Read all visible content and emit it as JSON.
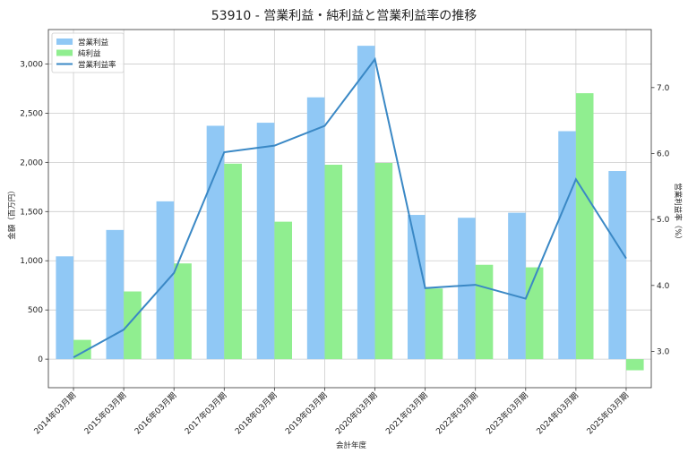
{
  "chart_data": {
    "type": "bar",
    "title": "53910 - 営業利益・純利益と営業利益率の推移",
    "xlabel": "会計年度",
    "ylabel": "金額（百万円）",
    "y2label": "営業利益率（%）",
    "categories": [
      "2014年03月期",
      "2015年03月期",
      "2016年03月期",
      "2017年03月期",
      "2018年03月期",
      "2019年03月期",
      "2020年03月期",
      "2021年03月期",
      "2022年03月期",
      "2023年03月期",
      "2024年03月期",
      "2025年03月期"
    ],
    "series": [
      {
        "name": "営業利益",
        "kind": "bar",
        "axis": "left",
        "color": "#90c8f5",
        "values": [
          1045,
          1313,
          1604,
          2372,
          2403,
          2661,
          3185,
          1466,
          1437,
          1488,
          2317,
          1912
        ]
      },
      {
        "name": "純利益",
        "kind": "bar",
        "axis": "left",
        "color": "#90ee90",
        "values": [
          196,
          688,
          973,
          1987,
          1397,
          1976,
          1994,
          718,
          959,
          933,
          2703,
          -113
        ]
      },
      {
        "name": "営業利益率",
        "kind": "line",
        "axis": "right",
        "color": "#3a88c5",
        "values": [
          2.91,
          3.33,
          4.19,
          6.02,
          6.12,
          6.42,
          7.43,
          3.96,
          4.01,
          3.8,
          5.61,
          4.41
        ]
      }
    ],
    "ylim": [
      -290,
      3350
    ],
    "yticks": [
      0,
      500,
      1000,
      1500,
      2000,
      2500,
      3000
    ],
    "ytick_labels": [
      "0",
      "500",
      "1,000",
      "1,500",
      "2,000",
      "2,500",
      "3,000"
    ],
    "y2lim": [
      2.45,
      7.88
    ],
    "y2ticks": [
      3.0,
      4.0,
      5.0,
      6.0,
      7.0
    ],
    "y2tick_labels": [
      "3.0",
      "4.0",
      "5.0",
      "6.0",
      "7.0"
    ],
    "grid": true,
    "legend_position": "top-left"
  }
}
